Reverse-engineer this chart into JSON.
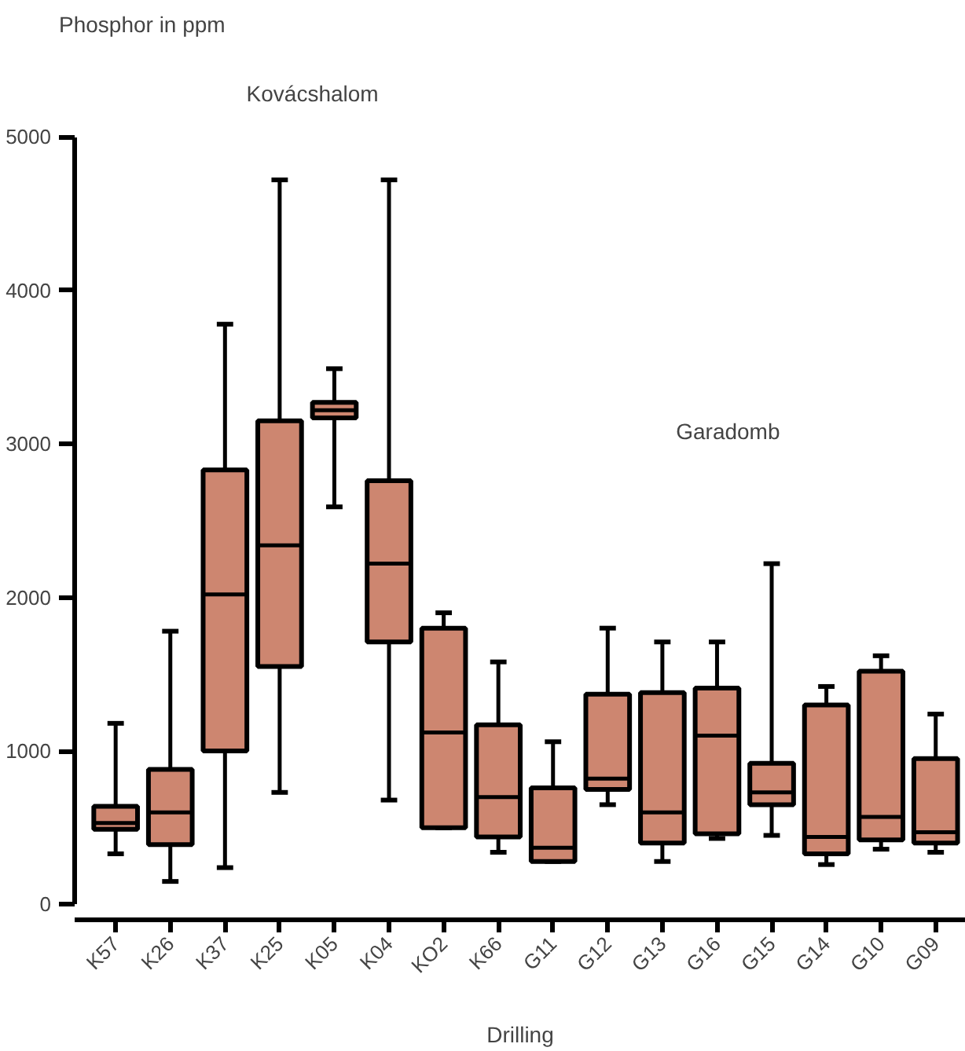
{
  "chart_data": {
    "type": "box",
    "ylabel": "Phosphor in ppm",
    "xlabel": "Drilling",
    "annotations": [
      "Kovácshalom",
      "Garadomb"
    ],
    "categories": [
      "K57",
      "K26",
      "K37",
      "K25",
      "K05",
      "K04",
      "KO2",
      "K66",
      "G11",
      "G12",
      "G13",
      "G16",
      "G15",
      "G14",
      "G10",
      "G09"
    ],
    "series": [
      {
        "color": "#cd8670",
        "boxes": [
          {
            "low": 330,
            "q1": 490,
            "median": 530,
            "q3": 640,
            "high": 1180
          },
          {
            "low": 150,
            "q1": 390,
            "median": 600,
            "q3": 880,
            "high": 1780
          },
          {
            "low": 240,
            "q1": 1000,
            "median": 2020,
            "q3": 2830,
            "high": 3780
          },
          {
            "low": 730,
            "q1": 1550,
            "median": 2340,
            "q3": 3150,
            "high": 4720
          },
          {
            "low": 2590,
            "q1": 3170,
            "median": 3220,
            "q3": 3270,
            "high": 3490
          },
          {
            "low": 680,
            "q1": 1710,
            "median": 2220,
            "q3": 2760,
            "high": 4720
          },
          {
            "low": 500,
            "q1": 500,
            "median": 1120,
            "q3": 1800,
            "high": 1900
          },
          {
            "low": 340,
            "q1": 440,
            "median": 700,
            "q3": 1170,
            "high": 1580
          },
          {
            "low": 280,
            "q1": 280,
            "median": 370,
            "q3": 760,
            "high": 1060
          },
          {
            "low": 650,
            "q1": 750,
            "median": 820,
            "q3": 1370,
            "high": 1800
          },
          {
            "low": 280,
            "q1": 400,
            "median": 600,
            "q3": 1380,
            "high": 1710
          },
          {
            "low": 430,
            "q1": 460,
            "median": 1100,
            "q3": 1410,
            "high": 1710
          },
          {
            "low": 450,
            "q1": 650,
            "median": 730,
            "q3": 920,
            "high": 2220
          },
          {
            "low": 260,
            "q1": 330,
            "median": 440,
            "q3": 1300,
            "high": 1420
          },
          {
            "low": 360,
            "q1": 420,
            "median": 570,
            "q3": 1520,
            "high": 1620
          },
          {
            "low": 340,
            "q1": 400,
            "median": 470,
            "q3": 950,
            "high": 1240
          }
        ]
      }
    ],
    "ylim": [
      0,
      5000
    ],
    "yticks": [
      0,
      1000,
      2000,
      3000,
      4000,
      5000
    ],
    "grid": false
  }
}
